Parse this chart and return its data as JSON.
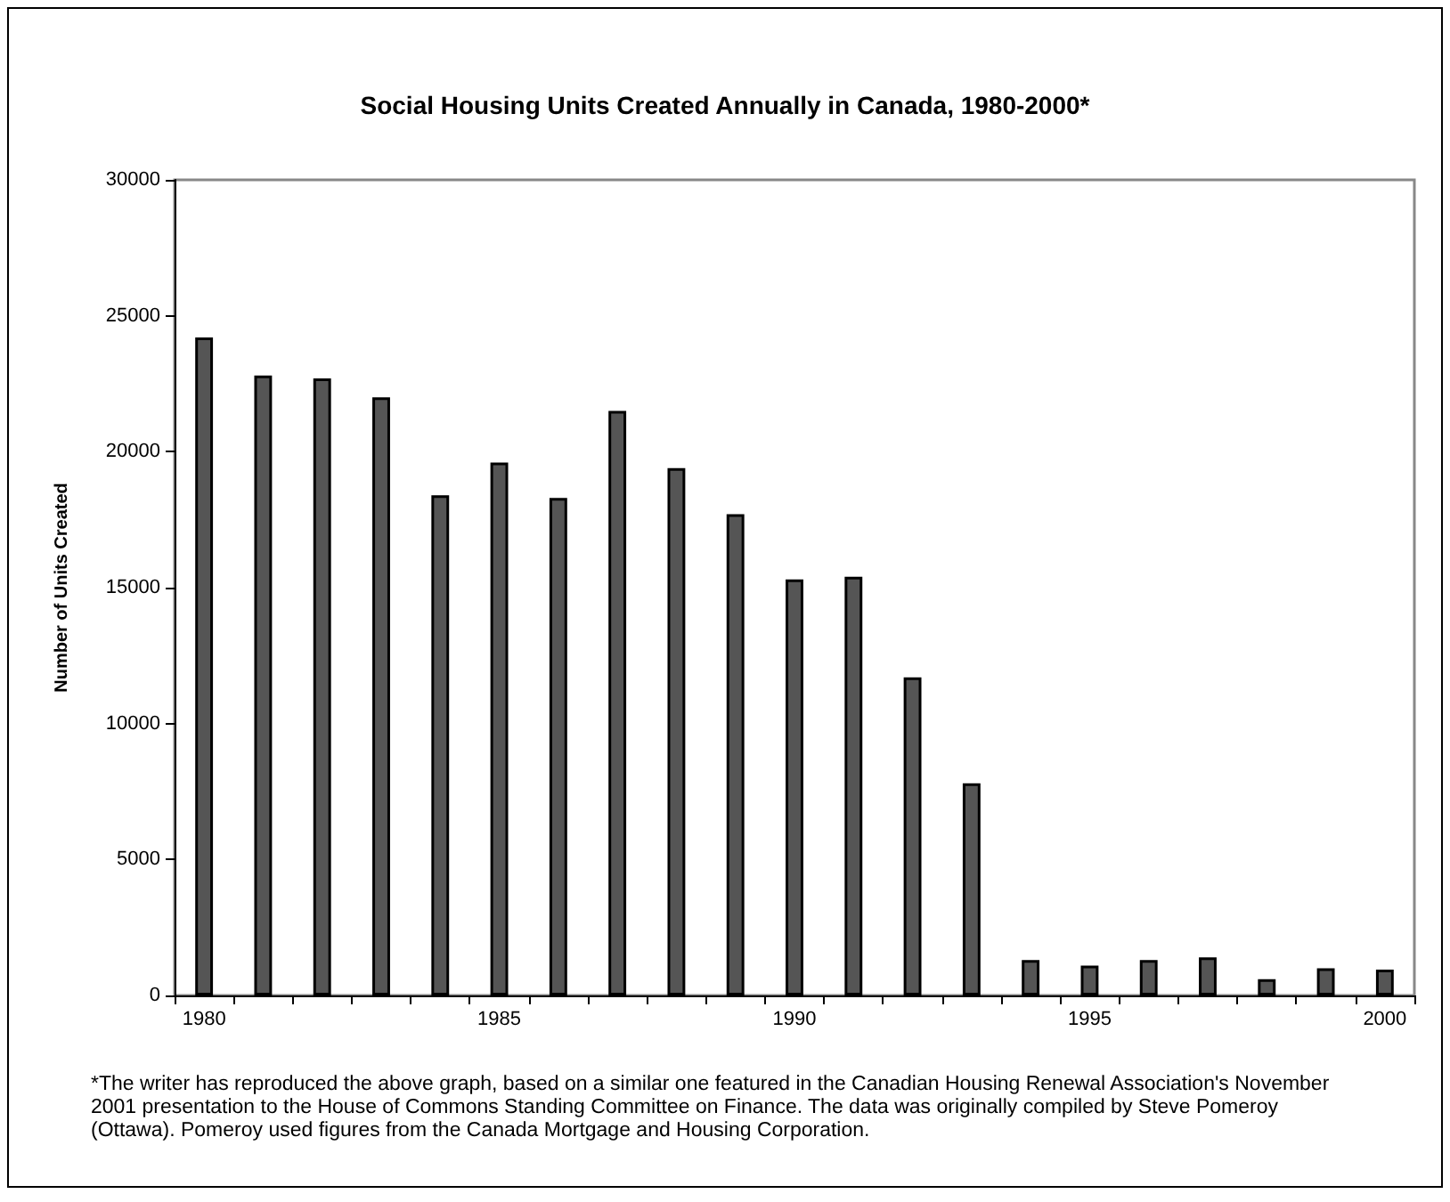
{
  "chart_data": {
    "type": "bar",
    "title": "Social Housing Units Created Annually in Canada, 1980-2000*",
    "ylabel": "Number of Units Created",
    "categories": [
      "1980",
      null,
      null,
      null,
      null,
      "1985",
      null,
      null,
      null,
      null,
      "1990",
      null,
      null,
      null,
      null,
      "1995",
      null,
      null,
      null,
      null,
      "2000"
    ],
    "values": [
      24200,
      22800,
      22700,
      22000,
      18400,
      19600,
      18300,
      21500,
      19400,
      17700,
      15300,
      15400,
      11700,
      7800,
      1300,
      1100,
      1300,
      1400,
      600,
      1000,
      950
    ],
    "color": "#555555",
    "ylim": [
      0,
      30000
    ],
    "yticks": [
      0,
      5000,
      10000,
      15000,
      20000,
      25000,
      30000
    ],
    "grid": false,
    "annotations": [
      "*The writer has reproduced the above graph, based on a similar one featured in the Canadian Housing Renewal Association's November 2001 presentation to the House of Commons Standing Committee on Finance.  The data was originally compiled by Steve Pomeroy (Ottawa).  Pomeroy used figures from the Canada Mortgage and Housing Corporation."
    ]
  }
}
